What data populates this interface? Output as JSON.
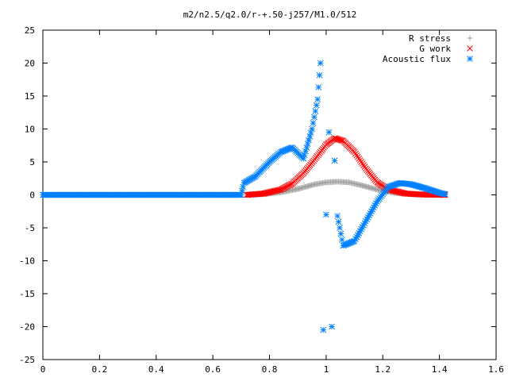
{
  "chart_data": {
    "type": "scatter",
    "title": "m2/n2.5/q2.0/r-+.50-j257/M1.0/512",
    "xlabel": "",
    "ylabel": "",
    "xlim": [
      0,
      1.6
    ],
    "ylim": [
      -25,
      25
    ],
    "xticks": [
      "0",
      "0.2",
      "0.4",
      "0.6",
      "0.8",
      "1",
      "1.2",
      "1.4",
      "1.6"
    ],
    "yticks": [
      "25",
      "20",
      "15",
      "10",
      "5",
      "0",
      "-5",
      "-10",
      "-15",
      "-20",
      "-25"
    ],
    "grid": false,
    "legend_position": "top-right",
    "series": [
      {
        "name": "R stress",
        "marker": "plus",
        "color": "#a0a0a0",
        "x": [
          0.72,
          0.78,
          0.84,
          0.9,
          0.96,
          1.0,
          1.04,
          1.08,
          1.12,
          1.18,
          1.24,
          1.3,
          1.36,
          1.42
        ],
        "y": [
          0.0,
          0.1,
          0.4,
          0.9,
          1.6,
          1.9,
          2.0,
          1.9,
          1.5,
          0.8,
          0.3,
          0.1,
          0.02,
          0.0
        ]
      },
      {
        "name": "G work",
        "marker": "cross",
        "color": "#ff0000",
        "x": [
          0.72,
          0.78,
          0.84,
          0.88,
          0.92,
          0.96,
          1.0,
          1.03,
          1.06,
          1.1,
          1.14,
          1.18,
          1.22,
          1.28,
          1.34,
          1.42
        ],
        "y": [
          0.0,
          0.2,
          0.8,
          1.7,
          3.3,
          5.4,
          7.6,
          8.6,
          8.2,
          6.5,
          4.0,
          1.9,
          0.8,
          0.2,
          0.05,
          0.0
        ]
      },
      {
        "name": "Acoustic flux",
        "marker": "star",
        "color": "#0080ff",
        "x": [
          0.0,
          0.1,
          0.2,
          0.3,
          0.4,
          0.5,
          0.6,
          0.7,
          0.71,
          0.75,
          0.8,
          0.84,
          0.88,
          0.92,
          0.95,
          0.97,
          0.98,
          0.99,
          1.0,
          1.01,
          1.02,
          1.03,
          1.04,
          1.06,
          1.1,
          1.14,
          1.18,
          1.22,
          1.26,
          1.3,
          1.35,
          1.4,
          1.42
        ],
        "y": [
          0.0,
          0.0,
          0.0,
          0.0,
          0.0,
          0.0,
          0.0,
          0.0,
          1.8,
          2.8,
          5.0,
          6.5,
          7.2,
          5.5,
          10.0,
          14.5,
          20.0,
          -20.5,
          -3.0,
          9.5,
          -20.0,
          5.2,
          -3.2,
          -7.7,
          -7.0,
          -4.0,
          -1.0,
          1.2,
          1.8,
          1.6,
          1.0,
          0.3,
          0.1
        ]
      }
    ]
  }
}
